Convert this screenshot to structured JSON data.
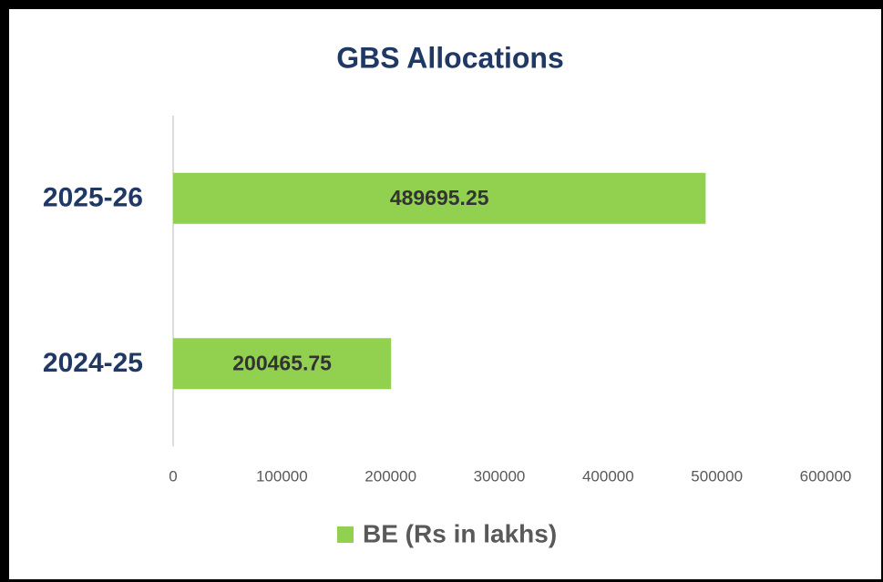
{
  "chart_data": {
    "type": "bar",
    "orientation": "horizontal",
    "title": "GBS Allocations",
    "categories": [
      "2024-25",
      "2025-26"
    ],
    "series": [
      {
        "name": "BE (Rs in lakhs)",
        "color": "#92d050",
        "values": [
          200465.75,
          489695.25
        ]
      }
    ],
    "xlim": [
      0,
      600000
    ],
    "xticks": [
      0,
      100000,
      200000,
      300000,
      400000,
      500000,
      600000
    ],
    "legend": "bottom"
  }
}
